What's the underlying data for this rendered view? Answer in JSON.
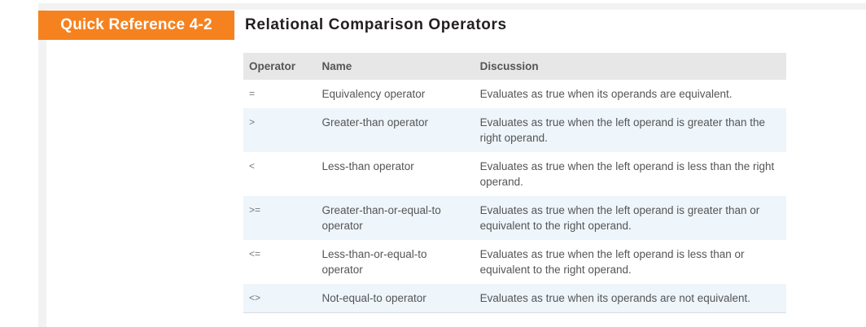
{
  "badge": {
    "label": "Quick Reference 4-2"
  },
  "title": "Relational Comparison Operators",
  "table": {
    "headers": [
      "Operator",
      "Name",
      "Discussion"
    ],
    "rows": [
      {
        "operator": "=",
        "name": "Equivalency operator",
        "discussion": "Evaluates as true when its operands are equivalent."
      },
      {
        "operator": ">",
        "name": "Greater-than operator",
        "discussion": "Evaluates as true when the left operand is greater than the right operand."
      },
      {
        "operator": "<",
        "name": "Less-than operator",
        "discussion": "Evaluates as true when the left operand is less than the right operand."
      },
      {
        "operator": ">=",
        "name": "Greater-than-or-equal-to operator",
        "discussion": "Evaluates as true when the left operand is greater than or equivalent to the right operand."
      },
      {
        "operator": "<=",
        "name": "Less-than-or-equal-to operator",
        "discussion": "Evaluates as true when the left operand is less than or equivalent to the right operand."
      },
      {
        "operator": "<>",
        "name": "Not-equal-to operator",
        "discussion": "Evaluates as true when its operands are not equivalent."
      }
    ]
  },
  "colors": {
    "badge_bg": "#f5821f",
    "header_bg": "#e7e7e7",
    "alt_row_bg": "#eef5fb"
  }
}
